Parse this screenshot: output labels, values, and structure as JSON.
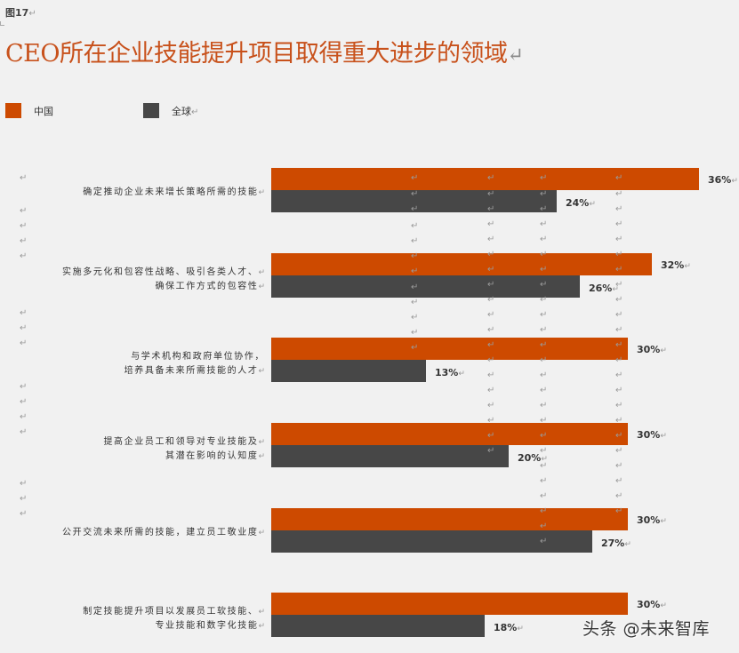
{
  "figure_label": "图17",
  "paragraph_mark": "↵",
  "title": "CEO所在企业技能提升项目取得重大进步的领域",
  "legend": [
    {
      "label": "中国",
      "color": "#cd4a00"
    },
    {
      "label": "全球",
      "color": "#474747"
    }
  ],
  "categories": [
    {
      "line1": "确定推动企业未来增长策略所需的技能",
      "line2": "",
      "china": "36%",
      "global": "24%"
    },
    {
      "line1": "实施多元化和包容性战略、吸引各类人才、",
      "line2": "确保工作方式的包容性",
      "china": "32%",
      "global": "26%"
    },
    {
      "line1": "与学术机构和政府单位协作，",
      "line2": "培养具备未来所需技能的人才",
      "china": "30%",
      "global": "13%"
    },
    {
      "line1": "提高企业员工和领导对专业技能及",
      "line2": "其潜在影响的认知度",
      "china": "30%",
      "global": "20%"
    },
    {
      "line1": "公开交流未来所需的技能，建立员工敬业度",
      "line2": "",
      "china": "30%",
      "global": "27%"
    },
    {
      "line1": "制定技能提升项目以发展员工软技能、",
      "line2": "专业技能和数字化技能",
      "china": "30%",
      "global": "18%"
    }
  ],
  "watermark": "头条 @未来智库",
  "chart_data": {
    "type": "bar",
    "orientation": "horizontal",
    "title": "CEO所在企业技能提升项目取得重大进步的领域",
    "categories": [
      "确定推动企业未来增长策略所需的技能",
      "实施多元化和包容性战略、吸引各类人才、确保工作方式的包容性",
      "与学术机构和政府单位协作，培养具备未来所需技能的人才",
      "提高企业员工和领导对专业技能及其潜在影响的认知度",
      "公开交流未来所需的技能，建立员工敬业度",
      "制定技能提升项目以发展员工软技能、专业技能和数字化技能"
    ],
    "series": [
      {
        "name": "中国",
        "color": "#cd4a00",
        "values": [
          36,
          32,
          30,
          30,
          30,
          30
        ]
      },
      {
        "name": "全球",
        "color": "#474747",
        "values": [
          24,
          26,
          13,
          20,
          27,
          18
        ]
      }
    ],
    "unit": "%",
    "xlabel": "",
    "ylabel": "",
    "grid": false,
    "axis_visible": false,
    "data_labels": true,
    "legend_position": "top-left"
  }
}
